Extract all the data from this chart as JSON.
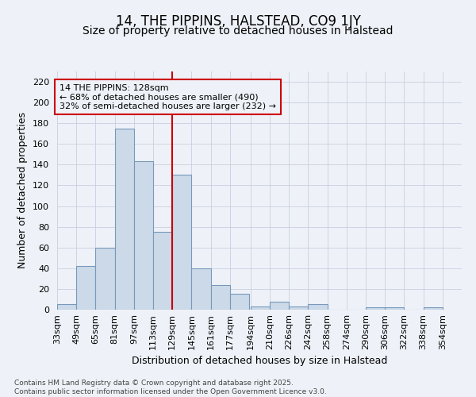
{
  "title": "14, THE PIPPINS, HALSTEAD, CO9 1JY",
  "subtitle": "Size of property relative to detached houses in Halstead",
  "xlabel": "Distribution of detached houses by size in Halstead",
  "ylabel": "Number of detached properties",
  "bar_color": "#ccd9e8",
  "bar_edgecolor": "#7799bb",
  "bar_linewidth": 0.8,
  "grid_color": "#c8cfe0",
  "background_color": "#eef2f8",
  "vline_x": 129,
  "vline_color": "#cc0000",
  "annotation_text": "14 THE PIPPINS: 128sqm\n← 68% of detached houses are smaller (490)\n32% of semi-detached houses are larger (232) →",
  "annotation_box_color": "#cc0000",
  "annotation_fontsize": 8.0,
  "bins": [
    33,
    49,
    65,
    81,
    97,
    113,
    129,
    145,
    161,
    177,
    194,
    210,
    226,
    242,
    258,
    274,
    290,
    306,
    322,
    338,
    354
  ],
  "values": [
    5,
    42,
    60,
    175,
    143,
    75,
    130,
    40,
    24,
    15,
    3,
    8,
    3,
    5,
    0,
    0,
    2,
    2,
    0,
    2
  ],
  "ylim": [
    0,
    230
  ],
  "yticks": [
    0,
    20,
    40,
    60,
    80,
    100,
    120,
    140,
    160,
    180,
    200,
    220
  ],
  "title_fontsize": 12,
  "subtitle_fontsize": 10,
  "xlabel_fontsize": 9,
  "ylabel_fontsize": 9,
  "tick_fontsize": 8,
  "footnote": "Contains HM Land Registry data © Crown copyright and database right 2025.\nContains public sector information licensed under the Open Government Licence v3.0.",
  "footnote_fontsize": 6.5
}
